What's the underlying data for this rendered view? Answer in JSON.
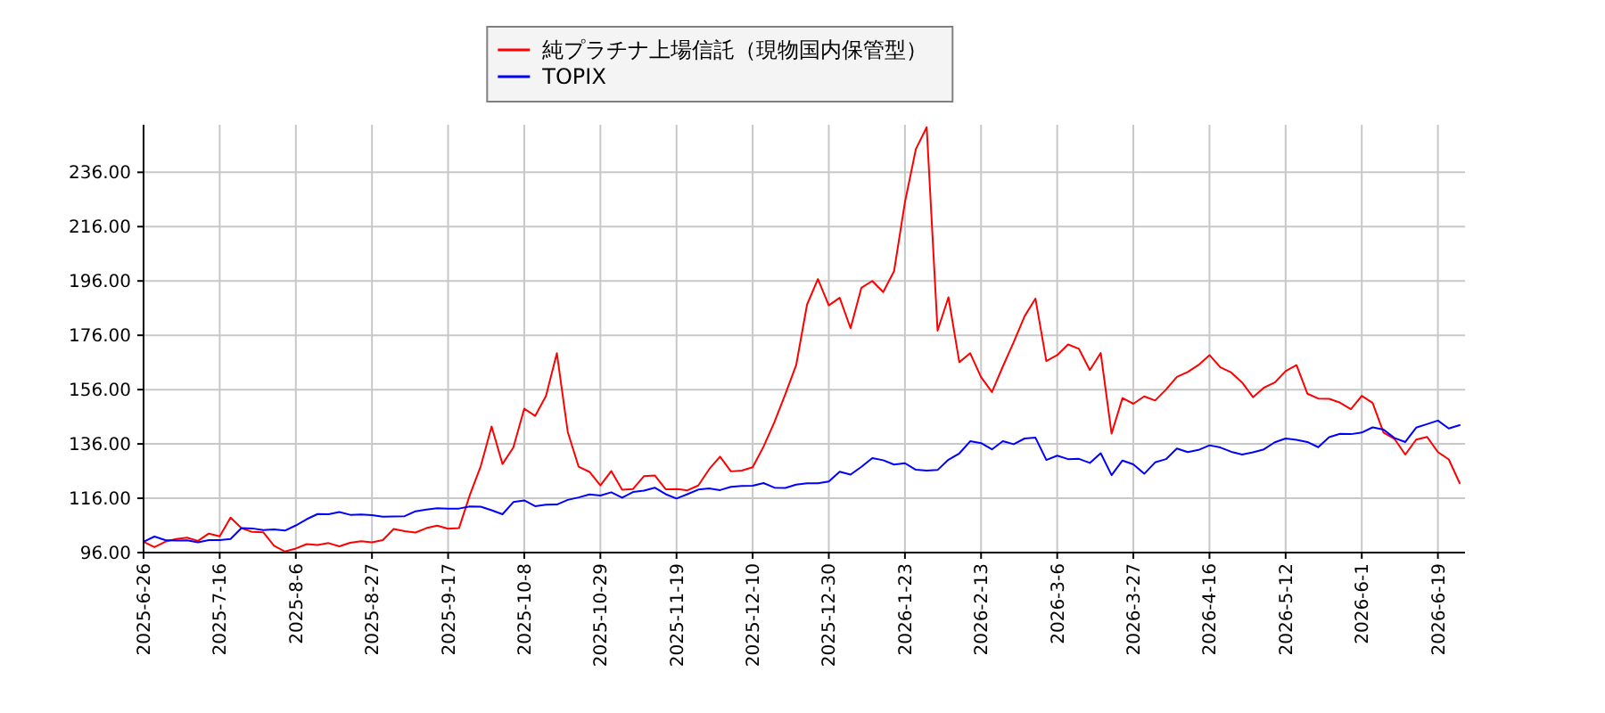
{
  "chart_data": {
    "type": "line",
    "categories": [
      "2025-6-26",
      null,
      null,
      null,
      null,
      null,
      null,
      "2025-7-16",
      null,
      null,
      null,
      null,
      null,
      null,
      "2025-8-6",
      null,
      null,
      null,
      null,
      null,
      null,
      "2025-8-27",
      null,
      null,
      null,
      null,
      null,
      null,
      "2025-9-17",
      null,
      null,
      null,
      null,
      null,
      null,
      "2025-10-8",
      null,
      null,
      null,
      null,
      null,
      null,
      "2025-10-29",
      null,
      null,
      null,
      null,
      null,
      null,
      "2025-11-19",
      null,
      null,
      null,
      null,
      null,
      null,
      "2025-12-10",
      null,
      null,
      null,
      null,
      null,
      null,
      "2025-12-30",
      null,
      null,
      null,
      null,
      null,
      null,
      "2026-1-23",
      null,
      null,
      null,
      null,
      null,
      null,
      "2026-2-13",
      null,
      null,
      null,
      null,
      null,
      null,
      "2026-3-6",
      null,
      null,
      null,
      null,
      null,
      null,
      "2026-3-27",
      null,
      null,
      null,
      null,
      null,
      null,
      "2026-4-16",
      null,
      null,
      null,
      null,
      null,
      null,
      "2026-5-12",
      null,
      null,
      null,
      null,
      null,
      null,
      "2026-6-1",
      null,
      null,
      null,
      null,
      null,
      null,
      "2026-6-19",
      null,
      null
    ],
    "ylim": [
      96,
      253.5
    ],
    "yticks": [
      {
        "value": 96,
        "label": "96.00"
      },
      {
        "value": 116,
        "label": "116.00"
      },
      {
        "value": 136,
        "label": "136.00"
      },
      {
        "value": 156,
        "label": "156.00"
      },
      {
        "value": 176,
        "label": "176.00"
      },
      {
        "value": 196,
        "label": "196.00"
      },
      {
        "value": 216,
        "label": "216.00"
      },
      {
        "value": 236,
        "label": "236.00"
      }
    ],
    "grid": true,
    "legend": "top",
    "series": [
      {
        "name": "純プラチナ上場信託（現物国内保管型）",
        "color": "#ff0000",
        "values": [
          100,
          98.0,
          100,
          101,
          101.5,
          100.3,
          103,
          102,
          108.9,
          105,
          103.6,
          103.5,
          98.5,
          96.4,
          97.5,
          99.1,
          98.8,
          99.5,
          98.3,
          99.6,
          100.2,
          99.8,
          100.6,
          104.7,
          103.9,
          103.4,
          105.0,
          105.9,
          104.8,
          105,
          117.2,
          127.8,
          142.4,
          128.6,
          134.7,
          149,
          146.3,
          153.7,
          169.4,
          140.4,
          127.6,
          125.7,
          120.7,
          126.0,
          119.1,
          119.4,
          124.1,
          124.4,
          119.3,
          119.4,
          118.9,
          120.7,
          126.7,
          131.3,
          125.9,
          126.2,
          127.4,
          135,
          144,
          154.3,
          165,
          187.3,
          196.7,
          187,
          189.8,
          178.6,
          193.5,
          196,
          191.9,
          199.6,
          225,
          244.5,
          252.6,
          177.7,
          190,
          166.1,
          169.4,
          160.6,
          155.1,
          164.5,
          173.5,
          183,
          189.5,
          166.5,
          168.7,
          172.6,
          171,
          163.2,
          169.5,
          139.8,
          152.9,
          150.8,
          153.5,
          152,
          156,
          160.7,
          162.5,
          165.1,
          168.7,
          164.2,
          162.3,
          158.6,
          153.2,
          156.7,
          158.6,
          162.8,
          165,
          154.5,
          152.7,
          152.6,
          151.2,
          148.8,
          153.7,
          151.1,
          140.2,
          137.9,
          132.1,
          137.6,
          138.6,
          133,
          130.3,
          121.6
        ]
      },
      {
        "name": "TOPIX",
        "color": "#0000ff",
        "values": [
          100,
          101.9,
          100.6,
          100.4,
          100.5,
          99.8,
          100.6,
          100.6,
          101.0,
          105,
          104.9,
          104.3,
          104.5,
          104.1,
          106,
          108.3,
          110.2,
          110.1,
          110.9,
          109.9,
          110,
          109.8,
          109.2,
          109.3,
          109.4,
          111.2,
          111.8,
          112.3,
          112.2,
          112.2,
          113,
          112.9,
          111.6,
          110.1,
          114.6,
          115.2,
          113.1,
          113.6,
          113.7,
          115.4,
          116.3,
          117.4,
          117,
          118.2,
          116.2,
          118.3,
          118.8,
          119.9,
          117.5,
          115.9,
          117.5,
          119.2,
          119.6,
          119,
          120.2,
          120.5,
          120.6,
          121.6,
          119.9,
          119.8,
          121,
          121.5,
          121.5,
          122.2,
          125.8,
          124.7,
          127.6,
          130.8,
          130,
          128.4,
          128.9,
          126.5,
          126.2,
          126.4,
          130.2,
          132.5,
          137,
          136.3,
          134,
          137.0,
          135.9,
          138,
          138.3,
          130.1,
          131.7,
          130.4,
          130.5,
          129,
          132.6,
          124.5,
          129.9,
          128.5,
          125,
          129.2,
          130.4,
          134.3,
          133,
          133.8,
          135.5,
          134.7,
          133.1,
          132.1,
          132.9,
          134,
          136.6,
          138,
          137.5,
          136.7,
          134.8,
          138.5,
          139.7,
          139.6,
          140.2,
          142.1,
          141.3,
          138.2,
          136.7,
          142,
          143.3,
          144.6,
          141.7,
          142.9
        ]
      }
    ]
  }
}
